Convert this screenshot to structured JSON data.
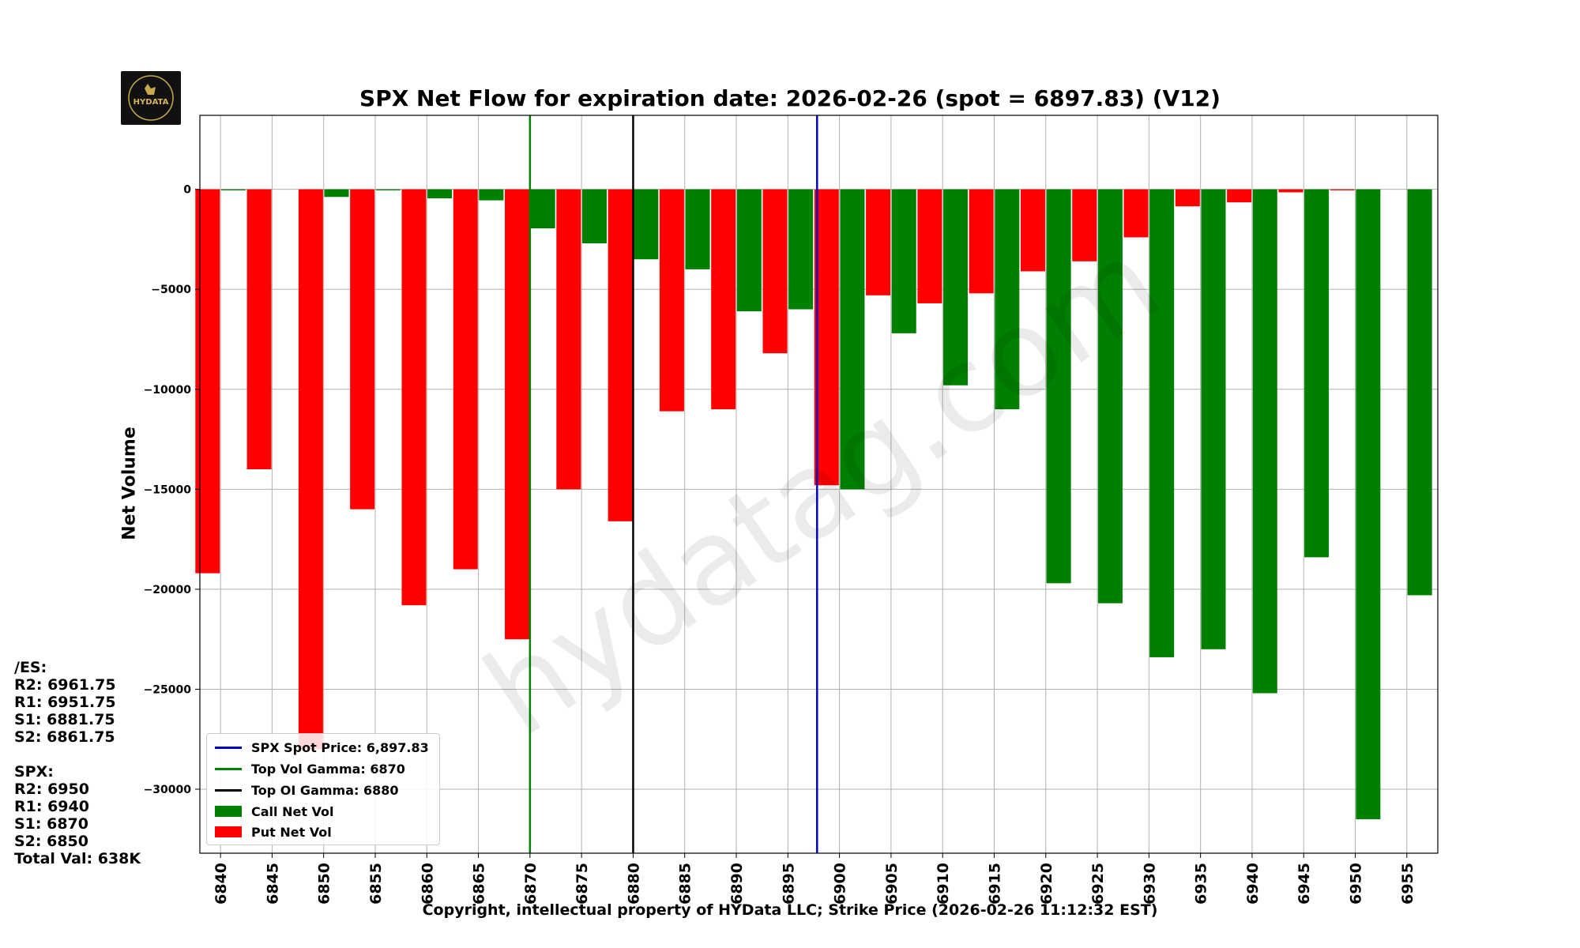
{
  "chart_data": {
    "type": "bar",
    "title": "SPX Net Flow for expiration date: 2026-02-26 (spot = 6897.83) (V12)",
    "xlabel": "Copyright, intellectual property of HYData LLC; Strike Price (2026-02-26 11:12:32 EST)",
    "ylabel": "Net Volume",
    "ylim": [
      -33200,
      3700
    ],
    "y_ticks": [
      0,
      -5000,
      -10000,
      -15000,
      -20000,
      -25000,
      -30000
    ],
    "y_tick_labels": [
      "0",
      "−5000",
      "−10000",
      "−15000",
      "−20000",
      "−25000",
      "−30000"
    ],
    "x_range": [
      6838,
      6958
    ],
    "strikes": [
      6840,
      6845,
      6850,
      6855,
      6860,
      6865,
      6870,
      6875,
      6880,
      6885,
      6890,
      6895,
      6900,
      6905,
      6910,
      6915,
      6920,
      6925,
      6930,
      6935,
      6940,
      6945,
      6950,
      6955
    ],
    "series": [
      {
        "name": "Put Net Vol",
        "color": "#ff0000",
        "offset": -1.25,
        "values": [
          -19200,
          -14000,
          -28000,
          -16000,
          -20800,
          -19000,
          -22500,
          -15000,
          -16600,
          -11100,
          -11000,
          -8200,
          -14800,
          -5300,
          -5700,
          -5200,
          -4100,
          -3600,
          -2400,
          -850,
          -650,
          -150,
          -50,
          0
        ]
      },
      {
        "name": "Call Net Vol",
        "color": "#008000",
        "offset": 1.25,
        "values": [
          -50,
          0,
          -380,
          -50,
          -450,
          -550,
          -1950,
          -2700,
          -3500,
          -4000,
          -6100,
          -6000,
          -15000,
          -7200,
          -9800,
          -11000,
          -19700,
          -20700,
          -23400,
          -23000,
          -25200,
          -18400,
          -31500,
          -20300
        ]
      }
    ],
    "vlines": [
      {
        "name": "SPX Spot Price",
        "x": 6897.83,
        "color": "#0000cc"
      },
      {
        "name": "Top Vol Gamma",
        "x": 6870,
        "color": "#008000"
      },
      {
        "name": "Top OI Gamma",
        "x": 6880,
        "color": "#000000"
      }
    ],
    "legend": [
      {
        "label": "SPX Spot Price: 6,897.83",
        "kind": "line",
        "color": "#0000cc"
      },
      {
        "label": "Top Vol Gamma: 6870",
        "kind": "line",
        "color": "#008000"
      },
      {
        "label": "Top OI Gamma: 6880",
        "kind": "line",
        "color": "#000000"
      },
      {
        "label": "Call Net Vol",
        "kind": "box",
        "color": "#008000"
      },
      {
        "label": "Put Net Vol",
        "kind": "box",
        "color": "#ff0000"
      }
    ],
    "legend_position": "lower-left",
    "grid": true,
    "watermark": "hydatag.com"
  },
  "logo": {
    "text": "HYDATA"
  },
  "levels": {
    "es_header": "/ES:",
    "es_lines": [
      "R2: 6961.75",
      "R1: 6951.75",
      "S1: 6881.75",
      "S2: 6861.75"
    ],
    "spx_header": "SPX:",
    "spx_lines": [
      "R2: 6950",
      "R1: 6940",
      "S1: 6870",
      "S2: 6850"
    ],
    "total": "Total Val: 638K"
  }
}
